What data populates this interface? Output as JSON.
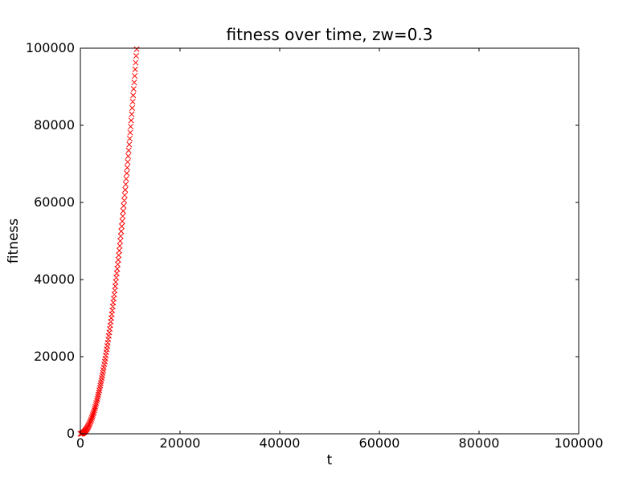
{
  "chart_data": {
    "type": "scatter",
    "title": "fitness over time, zw=0.3",
    "xlabel": "t",
    "ylabel": "fitness",
    "xlim": [
      0,
      100000
    ],
    "ylim": [
      0,
      100000
    ],
    "x_ticks": [
      0,
      20000,
      40000,
      60000,
      80000,
      100000
    ],
    "y_ticks": [
      0,
      20000,
      40000,
      60000,
      80000,
      100000
    ],
    "grid": false,
    "legend": "none",
    "axis_color": "#000000",
    "background_color": "#ffffff",
    "series": [
      {
        "name": "fitness",
        "marker": "x",
        "color": "#ff0000",
        "x": [
          0,
          100,
          200,
          300,
          400,
          500,
          600,
          700,
          800,
          900,
          1000,
          1100,
          1200,
          1300,
          1400,
          1500,
          1600,
          1700,
          1800,
          1900,
          2000,
          2100,
          2200,
          2300,
          2400,
          2500,
          2600,
          2700,
          2800,
          2900,
          3000,
          3100,
          3200,
          3300,
          3400,
          3500,
          3600,
          3700,
          3800,
          3900,
          4000,
          4100,
          4200,
          4300,
          4400,
          4500,
          4600,
          4700,
          4800,
          4900,
          5000,
          5100,
          5200,
          5300,
          5400,
          5500,
          5600,
          5700,
          5800,
          5900,
          6000,
          6100,
          6200,
          6300,
          6400,
          6500,
          6600,
          6700,
          6800,
          6900,
          7000,
          7100,
          7200,
          7300,
          7400,
          7500,
          7600,
          7700,
          7800,
          7900,
          8000,
          8100,
          8200,
          8300,
          8400,
          8500,
          8600,
          8700,
          8800,
          8900,
          9000,
          9100,
          9200,
          9300,
          9400,
          9500,
          9600,
          9700,
          9800,
          9900,
          10000,
          10100,
          10200,
          10300,
          10400,
          10500,
          10600,
          10700,
          10800,
          10900,
          11000,
          11100,
          11200,
          11300
        ],
        "y": [
          0,
          8,
          31,
          70,
          125,
          195,
          281,
          383,
          500,
          633,
          781,
          945,
          1125,
          1320,
          1531,
          1758,
          2000,
          2258,
          2531,
          2820,
          3125,
          3445,
          3781,
          4133,
          4500,
          4883,
          5281,
          5695,
          6125,
          6570,
          7031,
          7508,
          8000,
          8508,
          9031,
          9570,
          10125,
          10695,
          11281,
          11883,
          12500,
          13133,
          13781,
          14445,
          15125,
          15820,
          16531,
          17258,
          18000,
          18758,
          19531,
          20320,
          21125,
          21945,
          22781,
          23633,
          24500,
          25383,
          26281,
          27195,
          28125,
          29070,
          30031,
          31008,
          32000,
          33008,
          34031,
          35070,
          36125,
          37195,
          38281,
          39383,
          40500,
          41633,
          42781,
          43945,
          45125,
          46320,
          47531,
          48758,
          50000,
          51258,
          52531,
          53820,
          55125,
          56445,
          57781,
          59133,
          60500,
          61883,
          63281,
          64695,
          66125,
          67570,
          69031,
          70508,
          72000,
          73508,
          75031,
          76570,
          78125,
          79695,
          81281,
          82883,
          84500,
          86133,
          87781,
          89445,
          91125,
          92820,
          94531,
          96258,
          98000,
          99757
        ]
      }
    ]
  }
}
